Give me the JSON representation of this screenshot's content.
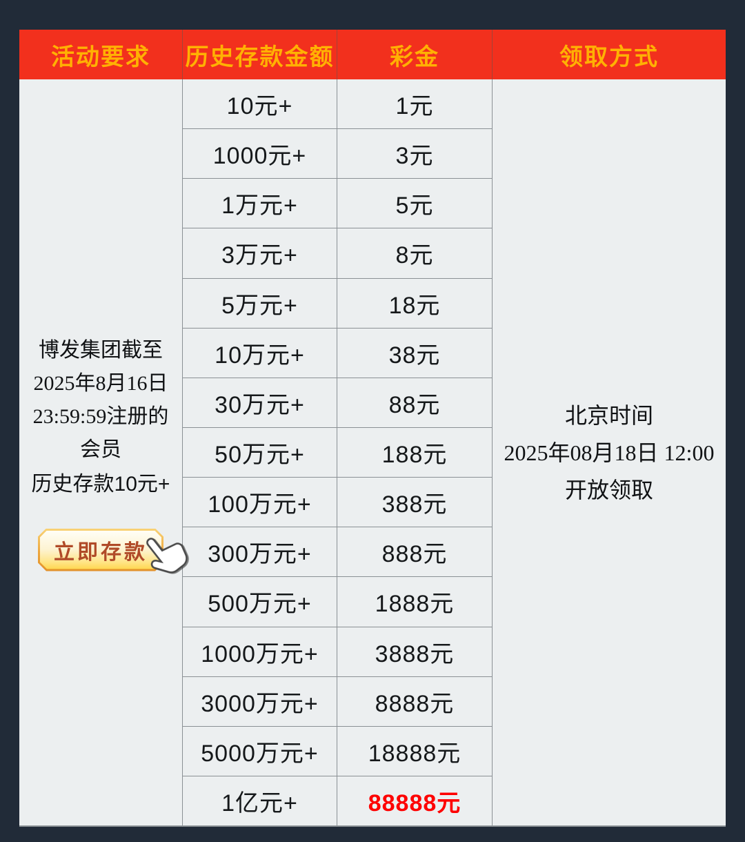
{
  "colors": {
    "page_bg": "#212b38",
    "header_bg": "#f2301d",
    "header_text": "#ffb103",
    "body_bg": "#eceff0",
    "highlight": "#fe0000",
    "button_text": "#b04a28"
  },
  "table": {
    "header": {
      "columns": [
        "活动要求",
        "历史存款金额",
        "彩金",
        "领取方式"
      ]
    },
    "requirement": {
      "line1": "博发集团截至2025年8月16日23:59:59注册的会员",
      "line2": "历史存款10元+",
      "deposit_button": "立即存款",
      "hand_icon": "hand-pointer-icon"
    },
    "rows": [
      {
        "deposit": "10元+",
        "bonus": "1元",
        "highlight": false
      },
      {
        "deposit": "1000元+",
        "bonus": "3元",
        "highlight": false
      },
      {
        "deposit": "1万元+",
        "bonus": "5元",
        "highlight": false
      },
      {
        "deposit": "3万元+",
        "bonus": "8元",
        "highlight": false
      },
      {
        "deposit": "5万元+",
        "bonus": "18元",
        "highlight": false
      },
      {
        "deposit": "10万元+",
        "bonus": "38元",
        "highlight": false
      },
      {
        "deposit": "30万元+",
        "bonus": "88元",
        "highlight": false
      },
      {
        "deposit": "50万元+",
        "bonus": "188元",
        "highlight": false
      },
      {
        "deposit": "100万元+",
        "bonus": "388元",
        "highlight": false
      },
      {
        "deposit": "300万元+",
        "bonus": "888元",
        "highlight": false
      },
      {
        "deposit": "500万元+",
        "bonus": "1888元",
        "highlight": false
      },
      {
        "deposit": "1000万元+",
        "bonus": "3888元",
        "highlight": false
      },
      {
        "deposit": "3000万元+",
        "bonus": "8888元",
        "highlight": false
      },
      {
        "deposit": "5000万元+",
        "bonus": "18888元",
        "highlight": false
      },
      {
        "deposit": "1亿元+",
        "bonus": "88888元",
        "highlight": true
      }
    ],
    "claim": {
      "lines": [
        "北京时间",
        "2025年08月18日 12:00",
        "开放领取"
      ]
    }
  }
}
